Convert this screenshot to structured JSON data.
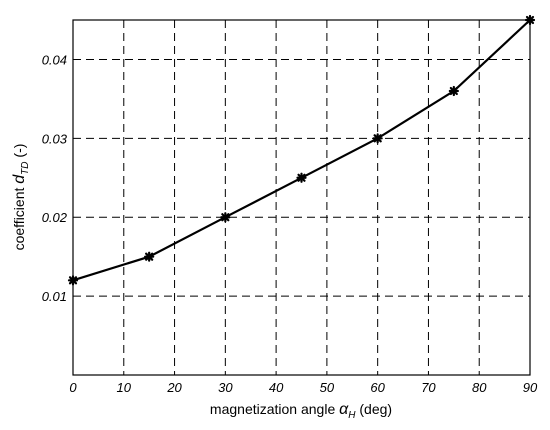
{
  "chart_data": {
    "type": "line",
    "x": [
      0,
      15,
      30,
      45,
      60,
      75,
      90
    ],
    "series": [
      {
        "values": [
          0.012,
          0.015,
          0.02,
          0.025,
          0.03,
          0.036,
          0.045
        ]
      }
    ],
    "xlim": [
      0,
      90
    ],
    "ylim": [
      0.0,
      0.045
    ],
    "xticks": [
      0,
      10,
      20,
      30,
      40,
      50,
      60,
      70,
      80,
      90
    ],
    "yticks": [
      0.01,
      0.02,
      0.03,
      0.04
    ],
    "xtick_labels": [
      "0",
      "10",
      "20",
      "30",
      "40",
      "50",
      "60",
      "70",
      "80",
      "90"
    ],
    "ytick_labels": [
      "0.01",
      "0.02",
      "0.03",
      "0.04"
    ],
    "xlabel": {
      "pre": "magnetization angle ",
      "sym": "α",
      "sub": "H",
      "post": " (deg)"
    },
    "ylabel": {
      "pre": "coefficient ",
      "sym": "d",
      "sub": "TD",
      "post": "  (-)"
    },
    "grid": true,
    "grid_style": "dashed",
    "marker": "star",
    "line_color": "#000000"
  }
}
